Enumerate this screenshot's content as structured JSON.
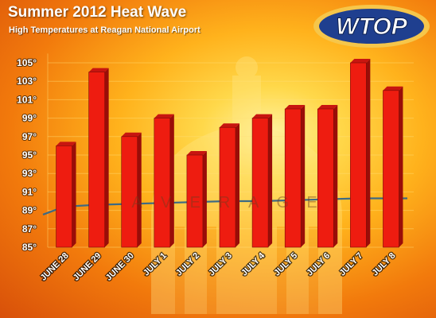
{
  "header": {
    "title": "Summer 2012 Heat Wave",
    "subtitle": "High Temperatures at Reagan National Airport"
  },
  "logo": {
    "text": "WTOP"
  },
  "colors": {
    "bar_front": "#ee1c10",
    "bar_side": "#9a0d08",
    "bar_top": "#c81510",
    "average_line": "#3d6a84",
    "logo_fill": "#1f3f8f",
    "logo_ring": "#f6c64a"
  },
  "chart_data": {
    "type": "bar",
    "title": "Summer 2012 Heat Wave",
    "subtitle": "High Temperatures at Reagan National Airport",
    "xlabel": "",
    "ylabel": "",
    "categories": [
      "JUNE 28",
      "JUNE 29",
      "JUNE 30",
      "JULY 1",
      "JULY 2",
      "JULY 3",
      "JULY 4",
      "JULY 5",
      "JULY 6",
      "JULY 7",
      "JULY 8"
    ],
    "series": [
      {
        "values": [
          96,
          104,
          97,
          99,
          95,
          98,
          99,
          100,
          100,
          105,
          102
        ]
      }
    ],
    "y_ticks": [
      "85°",
      "87°",
      "89°",
      "91°",
      "93°",
      "95°",
      "97°",
      "99°",
      "101°",
      "103°",
      "105°"
    ],
    "ylim": [
      85,
      106
    ],
    "average_label": "AVERAGE",
    "average_values": [
      89.4,
      89.6,
      89.7,
      89.8,
      89.9,
      90.0,
      90.0,
      90.1,
      90.2,
      90.3,
      90.3
    ],
    "grid": true,
    "legend": "none"
  }
}
